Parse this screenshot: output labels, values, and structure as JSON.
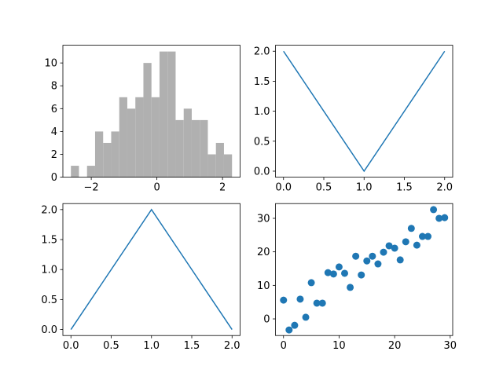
{
  "chart_data": [
    {
      "type": "histogram",
      "bins": [
        -2.62,
        -2.375,
        -2.129,
        -1.884,
        -1.638,
        -1.393,
        -1.147,
        -0.902,
        -0.656,
        -0.411,
        -0.165,
        0.08,
        0.326,
        0.571,
        0.817,
        1.062,
        1.308,
        1.553,
        1.799,
        2.044,
        2.29
      ],
      "counts": [
        1,
        0,
        1,
        4,
        3,
        4,
        7,
        6,
        7,
        10,
        7,
        11,
        11,
        5,
        6,
        5,
        5,
        2,
        3,
        2
      ],
      "color": "#b0b0b0",
      "xlim": [
        -2.865,
        2.536
      ],
      "xticks": [
        {
          "value": -2,
          "label": "−2"
        },
        0,
        2
      ],
      "ylim": [
        0,
        11.55
      ],
      "yticks": [
        0,
        2,
        4,
        6,
        8,
        10
      ]
    },
    {
      "type": "line",
      "x": [
        0,
        1,
        2
      ],
      "series": [
        {
          "color": "#1f77b4",
          "values": [
            2,
            0,
            2
          ]
        }
      ],
      "xlim": [
        -0.1,
        2.1
      ],
      "xticks": [
        {
          "value": 0,
          "label": "0.0"
        },
        0.5,
        {
          "value": 1,
          "label": "1.0"
        },
        1.5,
        {
          "value": 2,
          "label": "2.0"
        }
      ],
      "ylim": [
        -0.1,
        2.1
      ],
      "yticks": [
        {
          "value": 0,
          "label": "0.0"
        },
        0.5,
        {
          "value": 1,
          "label": "1.0"
        },
        1.5,
        {
          "value": 2,
          "label": "2.0"
        }
      ]
    },
    {
      "type": "line",
      "x": [
        0,
        1,
        2
      ],
      "series": [
        {
          "color": "#1f77b4",
          "values": [
            0,
            2,
            0
          ]
        }
      ],
      "xlim": [
        -0.1,
        2.1
      ],
      "xticks": [
        {
          "value": 0,
          "label": "0.0"
        },
        0.5,
        {
          "value": 1,
          "label": "1.0"
        },
        1.5,
        {
          "value": 2,
          "label": "2.0"
        }
      ],
      "ylim": [
        -0.1,
        2.1
      ],
      "yticks": [
        {
          "value": 0,
          "label": "0.0"
        },
        0.5,
        {
          "value": 1,
          "label": "1.0"
        },
        1.5,
        {
          "value": 2,
          "label": "2.0"
        }
      ]
    },
    {
      "type": "scatter",
      "x": [
        0,
        1,
        2,
        3,
        4,
        5,
        6,
        7,
        8,
        9,
        10,
        11,
        12,
        13,
        14,
        15,
        16,
        17,
        18,
        19,
        20,
        21,
        22,
        23,
        24,
        25,
        26,
        27,
        28,
        29
      ],
      "series": [
        {
          "color": "#1f77b4",
          "values": [
            5.6,
            -3.3,
            -1.9,
            5.9,
            0.5,
            10.8,
            4.7,
            4.7,
            13.8,
            13.4,
            15.5,
            13.6,
            9.4,
            18.7,
            13.1,
            17.3,
            18.7,
            16.4,
            19.9,
            21.8,
            21.1,
            17.6,
            23.0,
            27.0,
            22.0,
            24.6,
            24.6,
            32.6,
            30.0,
            30.2
          ]
        }
      ],
      "xlim": [
        -1.45,
        30.45
      ],
      "xticks": [
        0,
        10,
        20,
        30
      ],
      "ylim": [
        -4.96,
        34.4
      ],
      "yticks": [
        0,
        10,
        20,
        30
      ]
    }
  ]
}
